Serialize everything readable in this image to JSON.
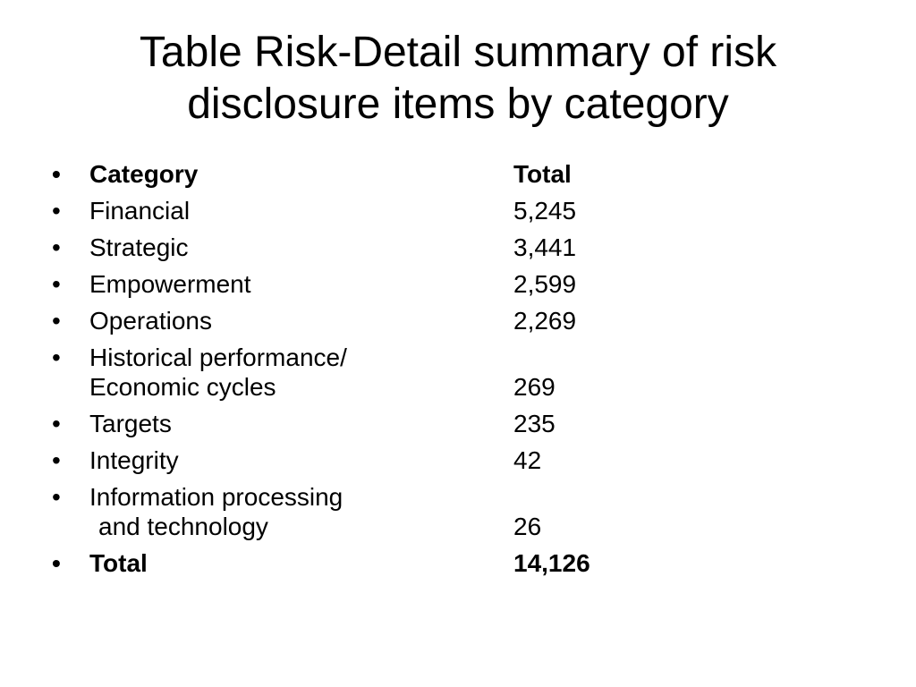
{
  "slide": {
    "title_line1": "Table Risk-Detail summary of risk",
    "title_line2": "disclosure items by category",
    "bullet_glyph": "•",
    "header": {
      "category": "Category",
      "total": "Total"
    },
    "rows": [
      {
        "category": "Financial",
        "total": "5,245"
      },
      {
        "category": "Strategic",
        "total": "3,441"
      },
      {
        "category": "Empowerment",
        "total": "2,599"
      },
      {
        "category": "Operations",
        "total": "2,269"
      },
      {
        "category_line1": "Historical performance/",
        "category_line2": "Economic cycles",
        "total": "269"
      },
      {
        "category": "Targets",
        "total": "235"
      },
      {
        "category": "Integrity",
        "total": "42"
      },
      {
        "category_line1": "Information processing",
        "category_line2": "and technology",
        "total": "26"
      }
    ],
    "footer": {
      "category": "Total",
      "total": "14,126"
    }
  }
}
